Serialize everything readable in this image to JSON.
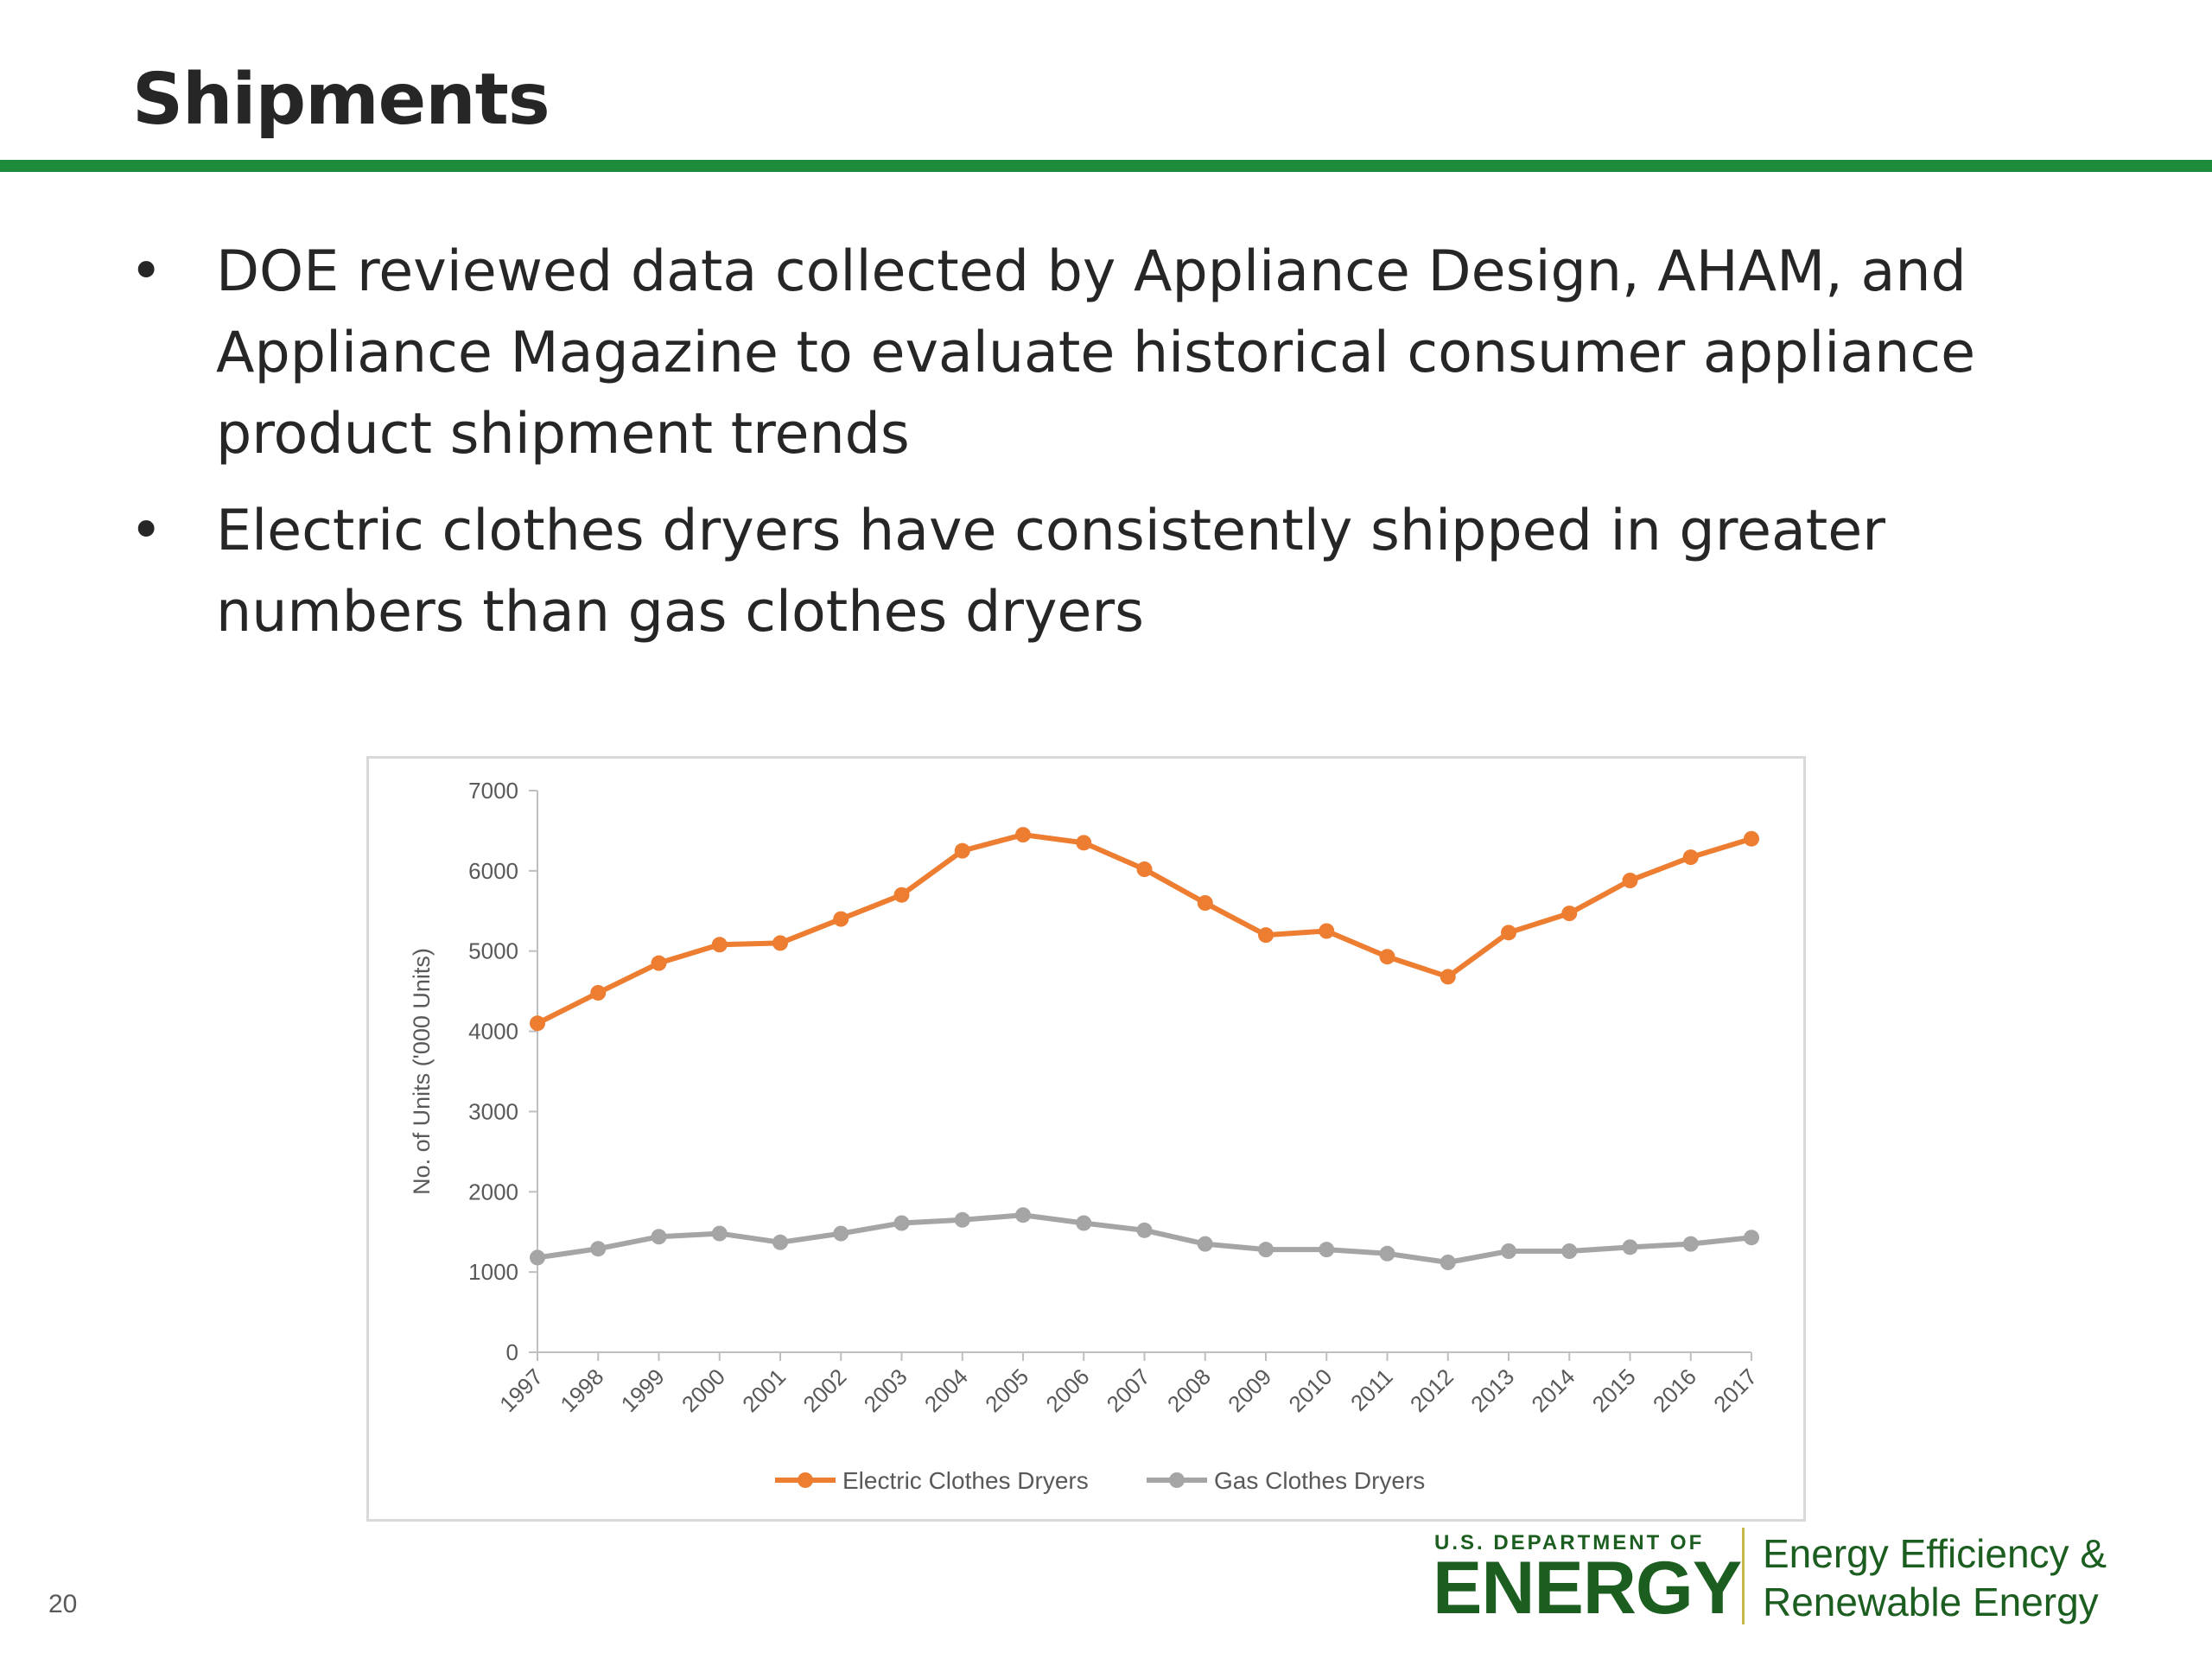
{
  "slide": {
    "title": "Shipments",
    "page_number": "20",
    "bullet_symbol": "•",
    "bullets": [
      "DOE reviewed data collected by Appliance Design, AHAM, and Appliance Magazine to evaluate  historical consumer appliance product shipment trends",
      "Electric clothes dryers have consistently shipped in greater numbers than gas clothes dryers"
    ],
    "accent_color": "#1e8a3c"
  },
  "logo": {
    "department_line": "U.S. DEPARTMENT OF",
    "energy_word": "ENERGY",
    "office_line1": "Energy Efficiency &",
    "office_line2": "Renewable Energy"
  },
  "chart_data": {
    "type": "line",
    "title": "",
    "xlabel": "",
    "ylabel": "No. of Units ('000 Units)",
    "ylim": [
      0,
      7000
    ],
    "yticks": [
      0,
      1000,
      2000,
      3000,
      4000,
      5000,
      6000,
      7000
    ],
    "grid": false,
    "legend_position": "bottom",
    "x": [
      "1997",
      "1998",
      "1999",
      "2000",
      "2001",
      "2002",
      "2003",
      "2004",
      "2005",
      "2006",
      "2007",
      "2008",
      "2009",
      "2010",
      "2011",
      "2012",
      "2013",
      "2014",
      "2015",
      "2016",
      "2017"
    ],
    "series": [
      {
        "name": "Electric Clothes Dryers",
        "color": "#ed7d31",
        "values": [
          4100,
          4480,
          4850,
          5080,
          5100,
          5400,
          5700,
          6250,
          6450,
          6350,
          6020,
          5600,
          5200,
          5250,
          4930,
          4680,
          5230,
          5470,
          5880,
          6170,
          6400
        ]
      },
      {
        "name": "Gas Clothes Dryers",
        "color": "#a5a5a5",
        "values": [
          1180,
          1290,
          1440,
          1480,
          1370,
          1480,
          1610,
          1650,
          1710,
          1610,
          1520,
          1350,
          1280,
          1280,
          1230,
          1120,
          1260,
          1260,
          1310,
          1350,
          1430
        ]
      }
    ]
  }
}
